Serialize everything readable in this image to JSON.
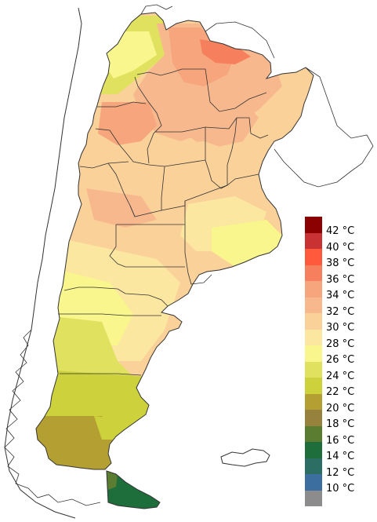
{
  "legend": {
    "items": [
      {
        "label": "42 °C",
        "color": "#8b0000"
      },
      {
        "label": "40 °C",
        "color": "#c83232"
      },
      {
        "label": "38 °C",
        "color": "#ff5a3c"
      },
      {
        "label": "36 °C",
        "color": "#f6805e"
      },
      {
        "label": "34 °C",
        "color": "#f6a57c"
      },
      {
        "label": "32 °C",
        "color": "#f8b88e"
      },
      {
        "label": "30 °C",
        "color": "#fbd19a"
      },
      {
        "label": "28 °C",
        "color": "#fbe7a0"
      },
      {
        "label": "26 °C",
        "color": "#f8f68c"
      },
      {
        "label": "24 °C",
        "color": "#e1e160"
      },
      {
        "label": "22 °C",
        "color": "#cdd23c"
      },
      {
        "label": "20 °C",
        "color": "#b4a032"
      },
      {
        "label": "18 °C",
        "color": "#96823c"
      },
      {
        "label": "16 °C",
        "color": "#5a7d32"
      },
      {
        "label": "14 °C",
        "color": "#1e6e3c"
      },
      {
        "label": "12 °C",
        "color": "#2d6e64"
      },
      {
        "label": "10 °C",
        "color": "#3c6ea0"
      },
      {
        "label": "",
        "color": "#8c8c8c"
      }
    ]
  },
  "map_colors": {
    "border": "#333333",
    "neighbor_outline": "#333333",
    "water": "#ffffff"
  }
}
